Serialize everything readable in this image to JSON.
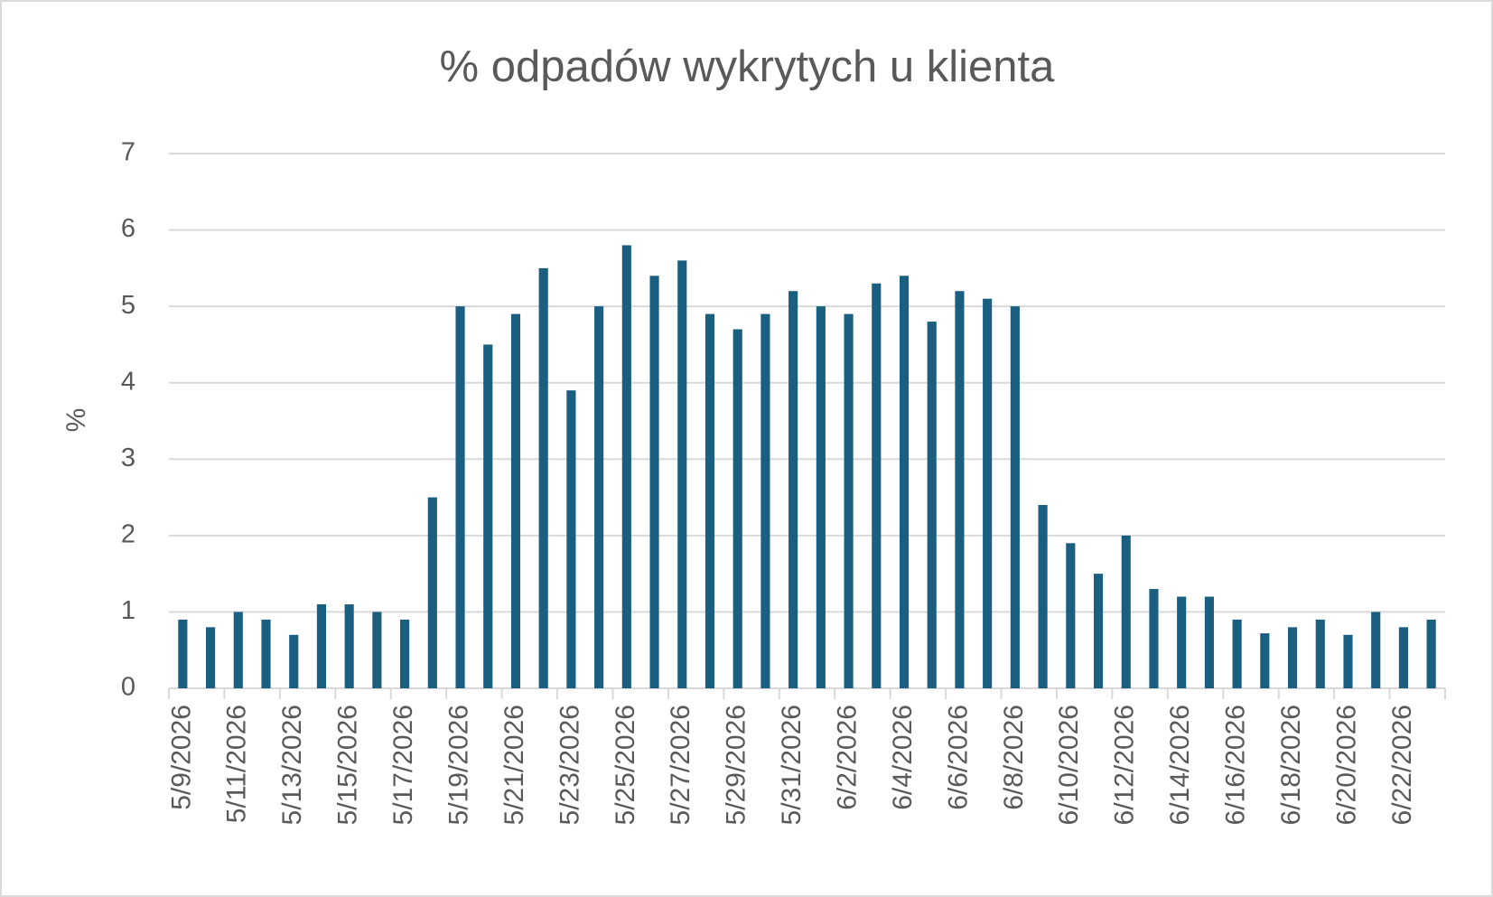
{
  "chart_data": {
    "type": "bar",
    "title": "% odpadów wykrytych u klienta",
    "y_label": "%",
    "categories": [
      "5/9/2026",
      null,
      "5/11/2026",
      null,
      "5/13/2026",
      null,
      "5/15/2026",
      null,
      "5/17/2026",
      null,
      "5/19/2026",
      null,
      "5/21/2026",
      null,
      "5/23/2026",
      null,
      "5/25/2026",
      null,
      "5/27/2026",
      null,
      "5/29/2026",
      null,
      "5/31/2026",
      null,
      "6/2/2026",
      null,
      "6/4/2026",
      null,
      "6/6/2026",
      null,
      "6/8/2026",
      null,
      "6/10/2026",
      null,
      "6/12/2026",
      null,
      "6/14/2026",
      null,
      "6/16/2026",
      null,
      "6/18/2026",
      null,
      "6/20/2026",
      null,
      "6/22/2026",
      null
    ],
    "values": [
      0.9,
      0.8,
      1.0,
      0.9,
      0.7,
      1.1,
      1.1,
      1.0,
      0.9,
      2.5,
      5.0,
      4.5,
      4.9,
      5.5,
      3.9,
      5.0,
      5.8,
      5.4,
      5.6,
      4.9,
      4.7,
      4.9,
      5.2,
      5.0,
      4.9,
      5.3,
      5.4,
      4.8,
      5.2,
      5.1,
      5.0,
      2.4,
      1.9,
      1.5,
      2.0,
      1.3,
      1.2,
      1.2,
      0.9,
      0.72,
      0.8,
      0.9,
      0.7,
      1.0,
      0.8,
      0.9
    ],
    "color": "#1a5e80",
    "ylim": [
      0,
      7
    ],
    "yticks": [
      0,
      1,
      2,
      3,
      4,
      5,
      6,
      7
    ],
    "grid": true
  }
}
